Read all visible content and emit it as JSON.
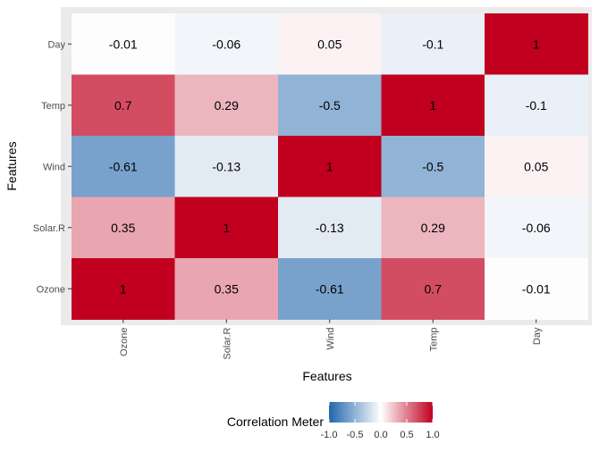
{
  "chart_data": {
    "type": "heatmap",
    "title": "",
    "xlabel": "Features",
    "ylabel": "Features",
    "x_categories": [
      "Ozone",
      "Solar.R",
      "Wind",
      "Temp",
      "Day"
    ],
    "y_categories_top_to_bottom": [
      "Day",
      "Temp",
      "Wind",
      "Solar.R",
      "Ozone"
    ],
    "matrix_rows_top_to_bottom": [
      [
        -0.01,
        -0.06,
        0.05,
        -0.1,
        1
      ],
      [
        0.7,
        0.29,
        -0.5,
        1,
        -0.1
      ],
      [
        -0.61,
        -0.13,
        1,
        -0.5,
        0.05
      ],
      [
        0.35,
        1,
        -0.13,
        0.29,
        -0.06
      ],
      [
        1,
        0.35,
        -0.61,
        0.7,
        -0.01
      ]
    ],
    "value_range": [
      -1,
      1
    ],
    "colors": {
      "low": "#2166ac",
      "mid": "#ffffff",
      "high": "#c0001e",
      "panel_bg": "#ebebeb"
    },
    "legend": {
      "title": "Correlation Meter",
      "ticks": [
        -1.0,
        -0.5,
        0.0,
        0.5,
        1.0
      ],
      "tick_labels": [
        "-1.0",
        "-0.5",
        "0.0",
        "0.5",
        "1.0"
      ],
      "position": "bottom"
    }
  }
}
